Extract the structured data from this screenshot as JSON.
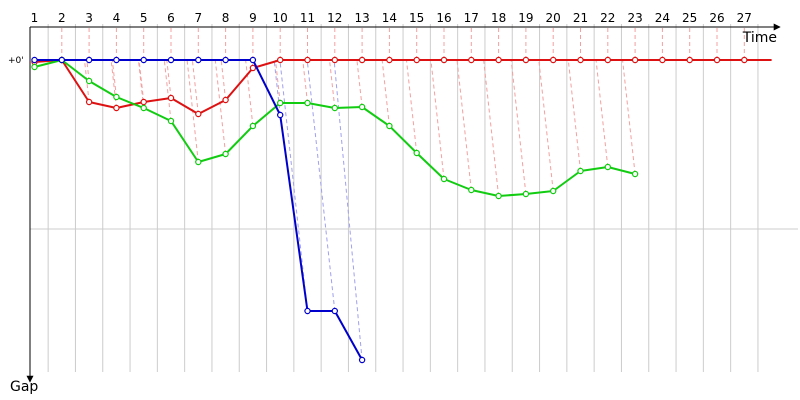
{
  "chart_data": {
    "type": "line",
    "title": "",
    "xlabel": "Time",
    "ylabel": "Gap",
    "zero_label": "+0'",
    "x_ticks": [
      1,
      2,
      3,
      4,
      5,
      6,
      7,
      8,
      9,
      10,
      11,
      12,
      13,
      14,
      15,
      16,
      17,
      18,
      19,
      20,
      21,
      22,
      23,
      24,
      25,
      26,
      27
    ],
    "x_range": [
      0.7,
      27.8
    ],
    "y_range": [
      0,
      310
    ],
    "grid": "vertical",
    "colors": {
      "grid": "#cccccc",
      "axis": "#000000",
      "red": "#dd1111",
      "green": "#11cc11",
      "blue": "#0000cc",
      "red_connector": "#f4a0a0",
      "blue_connector": "#a0a0ee"
    },
    "series": [
      {
        "color": "red",
        "points": [
          [
            1,
            2
          ],
          [
            2,
            0
          ],
          [
            3,
            42
          ],
          [
            4,
            48
          ],
          [
            5,
            42
          ],
          [
            6,
            38
          ],
          [
            7,
            54
          ],
          [
            8,
            40
          ],
          [
            9,
            8
          ],
          [
            10,
            0
          ],
          [
            11,
            0
          ],
          [
            12,
            0
          ],
          [
            13,
            0
          ],
          [
            14,
            0
          ],
          [
            15,
            0
          ],
          [
            16,
            0
          ],
          [
            17,
            0
          ],
          [
            18,
            0
          ],
          [
            19,
            0
          ],
          [
            20,
            0
          ],
          [
            21,
            0
          ],
          [
            22,
            0
          ],
          [
            23,
            0
          ],
          [
            24,
            0
          ],
          [
            25,
            0
          ],
          [
            26,
            0
          ],
          [
            27,
            0
          ],
          [
            28,
            0
          ]
        ]
      },
      {
        "color": "green",
        "points": [
          [
            1,
            7
          ],
          [
            2,
            0
          ],
          [
            3,
            21
          ],
          [
            4,
            37
          ],
          [
            5,
            48
          ],
          [
            6,
            61
          ],
          [
            7,
            102
          ],
          [
            8,
            94
          ],
          [
            9,
            66
          ],
          [
            10,
            43
          ],
          [
            11,
            43
          ],
          [
            12,
            48
          ],
          [
            13,
            47
          ],
          [
            14,
            66
          ],
          [
            15,
            93
          ],
          [
            16,
            119
          ],
          [
            17,
            130
          ],
          [
            18,
            136
          ],
          [
            19,
            134
          ],
          [
            20,
            131
          ],
          [
            21,
            111
          ],
          [
            22,
            107
          ],
          [
            23,
            114
          ]
        ]
      },
      {
        "color": "blue",
        "points": [
          [
            1,
            0
          ],
          [
            2,
            0
          ],
          [
            3,
            0
          ],
          [
            4,
            0
          ],
          [
            5,
            0
          ],
          [
            6,
            0
          ],
          [
            7,
            0
          ],
          [
            8,
            0
          ],
          [
            9,
            0
          ],
          [
            10,
            55
          ],
          [
            11,
            251
          ],
          [
            12,
            251
          ],
          [
            13,
            300
          ]
        ]
      }
    ]
  }
}
